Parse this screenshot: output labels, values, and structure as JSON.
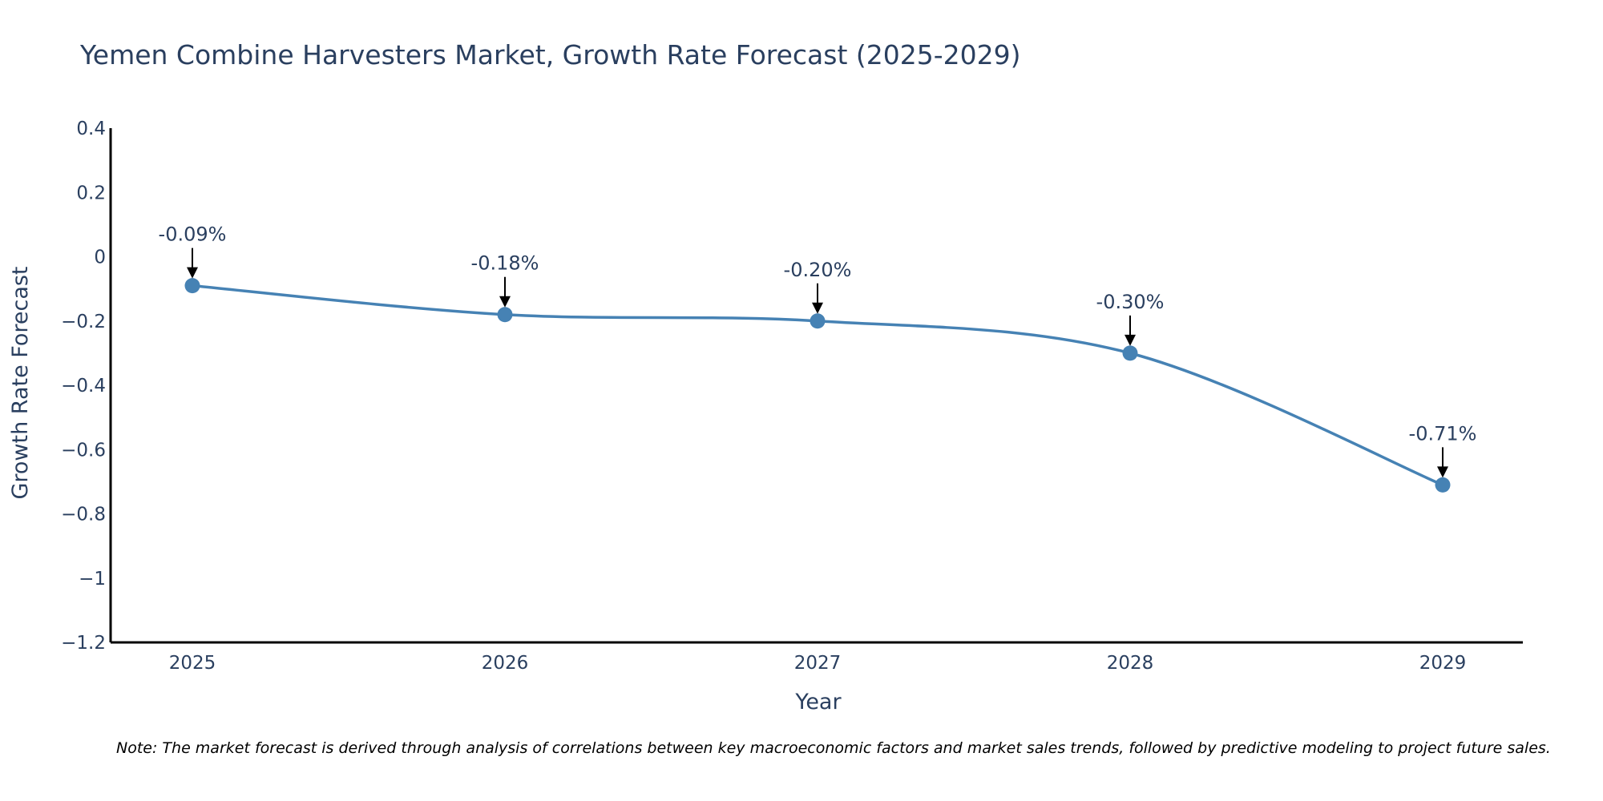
{
  "chart_data": {
    "type": "line",
    "title": "Yemen Combine Harvesters Market, Growth Rate Forecast (2025-2029)",
    "xlabel": "Year",
    "ylabel": "Growth Rate Forecast",
    "categories": [
      "2025",
      "2026",
      "2027",
      "2028",
      "2029"
    ],
    "series": [
      {
        "name": "Growth Rate Forecast",
        "values": [
          -0.09,
          -0.18,
          -0.2,
          -0.3,
          -0.71
        ],
        "labels": [
          "-0.09%",
          "-0.18%",
          "-0.20%",
          "-0.30%",
          "-0.71%"
        ]
      }
    ],
    "ylim": [
      -1.2,
      0.4
    ],
    "yticks": [
      0.4,
      0.2,
      0,
      -0.2,
      -0.4,
      -0.6,
      -0.8,
      -1,
      -1.2
    ],
    "ytick_labels": [
      "0.4",
      "0.2",
      "0",
      "−0.2",
      "−0.4",
      "−0.6",
      "−0.8",
      "−1",
      "−1.2"
    ],
    "grid": false,
    "line_color": "#4682b4",
    "marker_color": "#4682b4",
    "arrow_color": "#000000",
    "note": "Note: The market forecast is derived through analysis of correlations between key macroeconomic factors and market sales trends, followed by predictive modeling to project future sales."
  }
}
